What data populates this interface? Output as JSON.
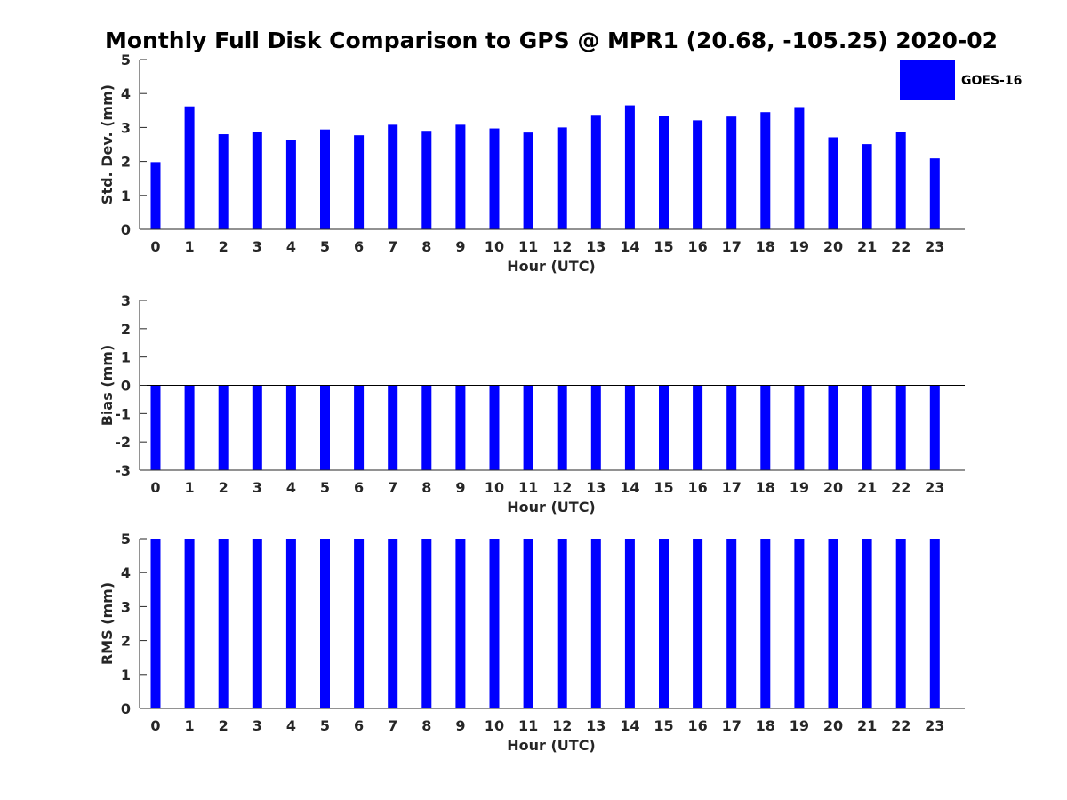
{
  "title": "Monthly Full Disk Comparison to GPS @ MPR1 (20.68, -105.25) 2020-02",
  "legend": {
    "label": "GOES-16",
    "color": "#0000ff"
  },
  "chart_data": [
    {
      "type": "bar",
      "xlabel": "Hour (UTC)",
      "ylabel": "Std. Dev. (mm)",
      "ylim": [
        0,
        5
      ],
      "yticks": [
        0,
        1,
        2,
        3,
        4,
        5
      ],
      "categories": [
        "0",
        "1",
        "2",
        "3",
        "4",
        "5",
        "6",
        "7",
        "8",
        "9",
        "10",
        "11",
        "12",
        "13",
        "14",
        "15",
        "16",
        "17",
        "18",
        "19",
        "20",
        "21",
        "22",
        "23"
      ],
      "series": [
        {
          "name": "GOES-16",
          "color": "#0000ff",
          "values": [
            1.98,
            3.62,
            2.8,
            2.87,
            2.64,
            2.94,
            2.77,
            3.08,
            2.9,
            3.08,
            2.97,
            2.85,
            3.0,
            3.37,
            3.65,
            3.34,
            3.21,
            3.32,
            3.45,
            3.6,
            2.71,
            2.51,
            2.87,
            2.09
          ]
        }
      ],
      "grid": false,
      "legend_position": "top-right"
    },
    {
      "type": "bar",
      "xlabel": "Hour (UTC)",
      "ylabel": "Bias (mm)",
      "ylim": [
        -3,
        3
      ],
      "yticks": [
        -3,
        -2,
        -1,
        0,
        1,
        2,
        3
      ],
      "categories": [
        "0",
        "1",
        "2",
        "3",
        "4",
        "5",
        "6",
        "7",
        "8",
        "9",
        "10",
        "11",
        "12",
        "13",
        "14",
        "15",
        "16",
        "17",
        "18",
        "19",
        "20",
        "21",
        "22",
        "23"
      ],
      "series": [
        {
          "name": "GOES-16",
          "color": "#0000ff",
          "values": [
            -3,
            -3,
            -3,
            -3,
            -3,
            -3,
            -3,
            -3,
            -3,
            -3,
            -3,
            -3,
            -3,
            -3,
            -3,
            -3,
            -3,
            -3,
            -3,
            -3,
            -3,
            -3,
            -3,
            -3
          ]
        }
      ],
      "zero_line": true,
      "grid": false
    },
    {
      "type": "bar",
      "xlabel": "Hour (UTC)",
      "ylabel": "RMS (mm)",
      "ylim": [
        0,
        5
      ],
      "yticks": [
        0,
        1,
        2,
        3,
        4,
        5
      ],
      "categories": [
        "0",
        "1",
        "2",
        "3",
        "4",
        "5",
        "6",
        "7",
        "8",
        "9",
        "10",
        "11",
        "12",
        "13",
        "14",
        "15",
        "16",
        "17",
        "18",
        "19",
        "20",
        "21",
        "22",
        "23"
      ],
      "series": [
        {
          "name": "GOES-16",
          "color": "#0000ff",
          "values": [
            5,
            5,
            5,
            5,
            5,
            5,
            5,
            5,
            5,
            5,
            5,
            5,
            5,
            5,
            5,
            5,
            5,
            5,
            5,
            5,
            5,
            5,
            5,
            5
          ]
        }
      ],
      "grid": false
    }
  ]
}
